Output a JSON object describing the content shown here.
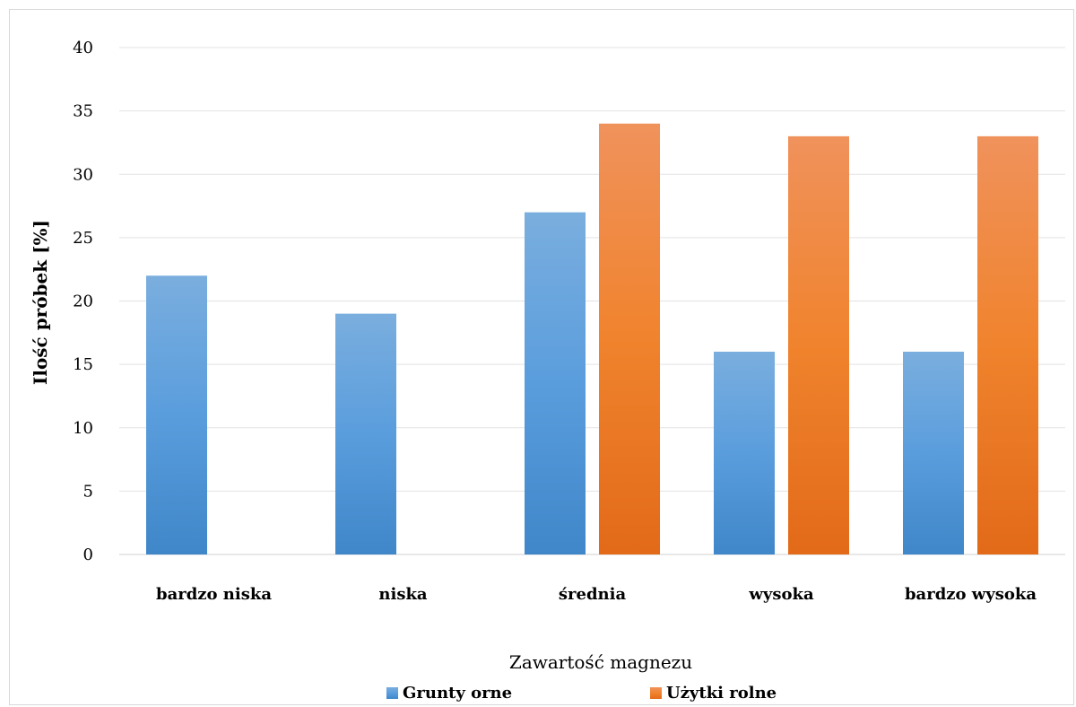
{
  "chart_data": {
    "type": "bar",
    "categories": [
      "bardzo niska",
      "niska",
      "średnia",
      "wysoka",
      "bardzo wysoka"
    ],
    "series": [
      {
        "name": "Grunty orne",
        "values": [
          22,
          19,
          27,
          16,
          16
        ],
        "color": "#5b9bd5"
      },
      {
        "name": "Użytki rolne",
        "values": [
          0,
          0,
          34,
          33,
          33
        ],
        "color": "#ed7d31"
      }
    ],
    "xlabel": "Zawartość magnezu",
    "ylabel": "Ilość próbek [%]",
    "ylim": [
      0,
      40
    ],
    "yticks": [
      "0",
      "5",
      "10",
      "15",
      "20",
      "25",
      "30",
      "35",
      "40"
    ],
    "grid": true,
    "legend_position": "bottom"
  }
}
